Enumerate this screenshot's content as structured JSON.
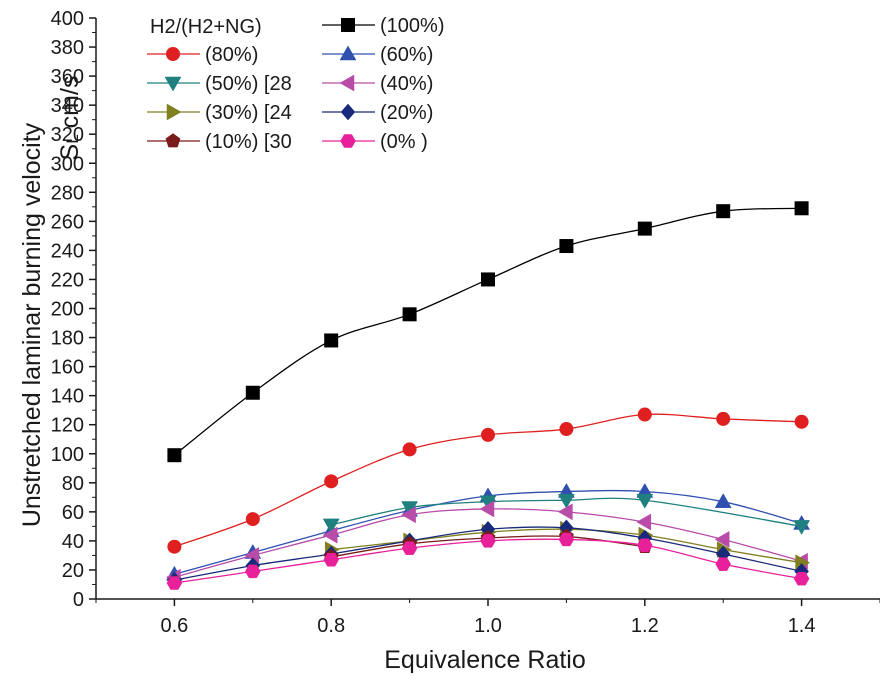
{
  "chart_data": {
    "type": "line",
    "xlabel": "Equivalence Ratio",
    "ylabel_main": "Unstretched laminar burning velocity",
    "ylabel_sym": "S",
    "ylabel_sub": "L",
    "ylabel_unit": "cm/s",
    "legend_title": "H2/(H2+NG)",
    "legend_position": "top-left",
    "xlim": [
      0.5,
      1.5
    ],
    "ylim": [
      0,
      400
    ],
    "xticks": [
      0.6,
      0.8,
      1.0,
      1.2,
      1.4
    ],
    "xtick_labels": [
      "0.6",
      "0.8",
      "1.0",
      "1.2",
      "1.4"
    ],
    "yticks": [
      0,
      20,
      40,
      60,
      80,
      100,
      120,
      140,
      160,
      180,
      200,
      220,
      240,
      260,
      280,
      300,
      320,
      340,
      360,
      380,
      400
    ],
    "ytick_labels": [
      "0",
      "20",
      "40",
      "60",
      "80",
      "100",
      "120",
      "140",
      "160",
      "180",
      "200",
      "220",
      "240",
      "260",
      "280",
      "300",
      "320",
      "340",
      "360",
      "380",
      "400"
    ],
    "grid": false,
    "series": [
      {
        "name": "(100%)",
        "color": "#000000",
        "marker": "square",
        "x": [
          0.6,
          0.7,
          0.8,
          0.9,
          1.0,
          1.1,
          1.2,
          1.3,
          1.4
        ],
        "values": [
          99,
          142,
          178,
          196,
          220,
          243,
          255,
          267,
          269
        ]
      },
      {
        "name": "(80%)",
        "color": "#e02020",
        "marker": "circle",
        "x": [
          0.6,
          0.7,
          0.8,
          0.9,
          1.0,
          1.1,
          1.2,
          1.3,
          1.4
        ],
        "values": [
          36,
          55,
          81,
          103,
          113,
          117,
          127,
          124,
          122
        ]
      },
      {
        "name": "(60%)",
        "color": "#3050b0",
        "marker": "triangle-up",
        "x": [
          0.6,
          0.7,
          0.8,
          0.9,
          1.0,
          1.1,
          1.2,
          1.3,
          1.4
        ],
        "values": [
          17,
          32,
          47,
          61,
          71,
          74,
          74,
          67,
          52
        ]
      },
      {
        "name": "(50%) [28",
        "color": "#208080",
        "marker": "triangle-down",
        "x": [
          0.8,
          0.9,
          1.0,
          1.1,
          1.2,
          1.4
        ],
        "values": [
          51,
          63,
          67,
          68,
          68,
          50
        ]
      },
      {
        "name": "(40%)",
        "color": "#b84ca8",
        "marker": "triangle-left",
        "x": [
          0.6,
          0.7,
          0.8,
          0.9,
          1.0,
          1.1,
          1.2,
          1.3,
          1.4
        ],
        "values": [
          15,
          30,
          44,
          58,
          62,
          60,
          53,
          41,
          26
        ]
      },
      {
        "name": "(30%) [24",
        "color": "#808020",
        "marker": "triangle-right",
        "x": [
          0.8,
          0.9,
          1.0,
          1.1,
          1.2,
          1.3,
          1.4
        ],
        "values": [
          34,
          40,
          46,
          48,
          44,
          34,
          25
        ]
      },
      {
        "name": "(20%)",
        "color": "#1a2a7a",
        "marker": "diamond",
        "x": [
          0.6,
          0.7,
          0.8,
          0.9,
          1.0,
          1.1,
          1.2,
          1.3,
          1.4
        ],
        "values": [
          13,
          23,
          31,
          40,
          48,
          49,
          42,
          31,
          19
        ]
      },
      {
        "name": "(10%) [30",
        "color": "#7a1a1a",
        "marker": "pentagon",
        "x": [
          0.8,
          0.9,
          1.0,
          1.1,
          1.2
        ],
        "values": [
          29,
          38,
          42,
          43,
          36
        ]
      },
      {
        "name": "(0% )",
        "color": "#e8209a",
        "marker": "hexagon",
        "x": [
          0.6,
          0.7,
          0.8,
          0.9,
          1.0,
          1.1,
          1.2,
          1.3,
          1.4
        ],
        "values": [
          11,
          19,
          27,
          35,
          40,
          41,
          37,
          24,
          14
        ]
      }
    ],
    "legend_order": [
      0,
      1,
      2,
      3,
      4,
      5,
      6,
      7,
      8
    ]
  }
}
